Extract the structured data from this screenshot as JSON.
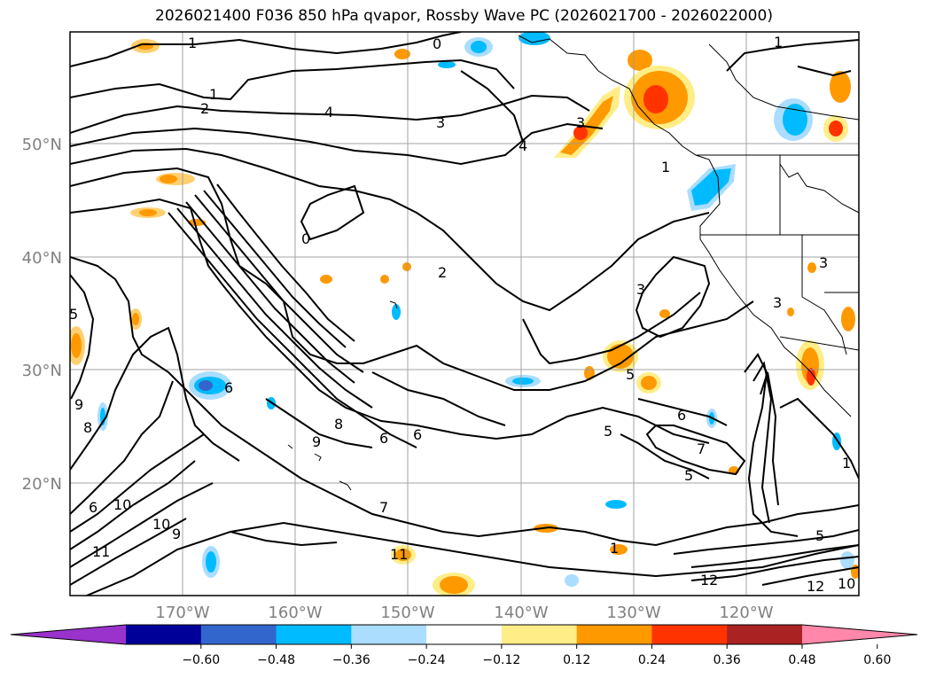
{
  "title": "2026021400 F036 850 hPa qvapor, Rossby Wave PC (2026021700 - 2026022000)",
  "map": {
    "lat_labels": [
      "50°N",
      "40°N",
      "30°N",
      "20°N"
    ],
    "lon_labels": [
      "170°W",
      "160°W",
      "150°W",
      "140°W",
      "130°W",
      "120°W"
    ],
    "label_color": "#808080"
  },
  "contour_labels": [
    "1",
    "0",
    "1",
    "2",
    "4",
    "3",
    "4",
    "3",
    "1",
    "1",
    "0",
    "2",
    "3",
    "3",
    "7",
    "8",
    "9",
    "10",
    "10",
    "9",
    "11",
    "6",
    "5",
    "8",
    "6",
    "6",
    "5",
    "5",
    "6",
    "7",
    "5",
    "1",
    "12",
    "12",
    "10",
    "5",
    "11",
    "1",
    "9",
    "6",
    "3"
  ],
  "colorbar": {
    "colors": [
      "#9933cc",
      "#000099",
      "#3366cc",
      "#00bbff",
      "#aaddff",
      "#ffffff",
      "#ffee88",
      "#ff9900",
      "#ff3300",
      "#aa2222",
      "#ff88aa"
    ],
    "tick_labels": [
      "−0.60",
      "−0.48",
      "−0.36",
      "−0.24",
      "−0.12",
      "0.12",
      "0.24",
      "0.36",
      "0.48",
      "0.60"
    ]
  }
}
